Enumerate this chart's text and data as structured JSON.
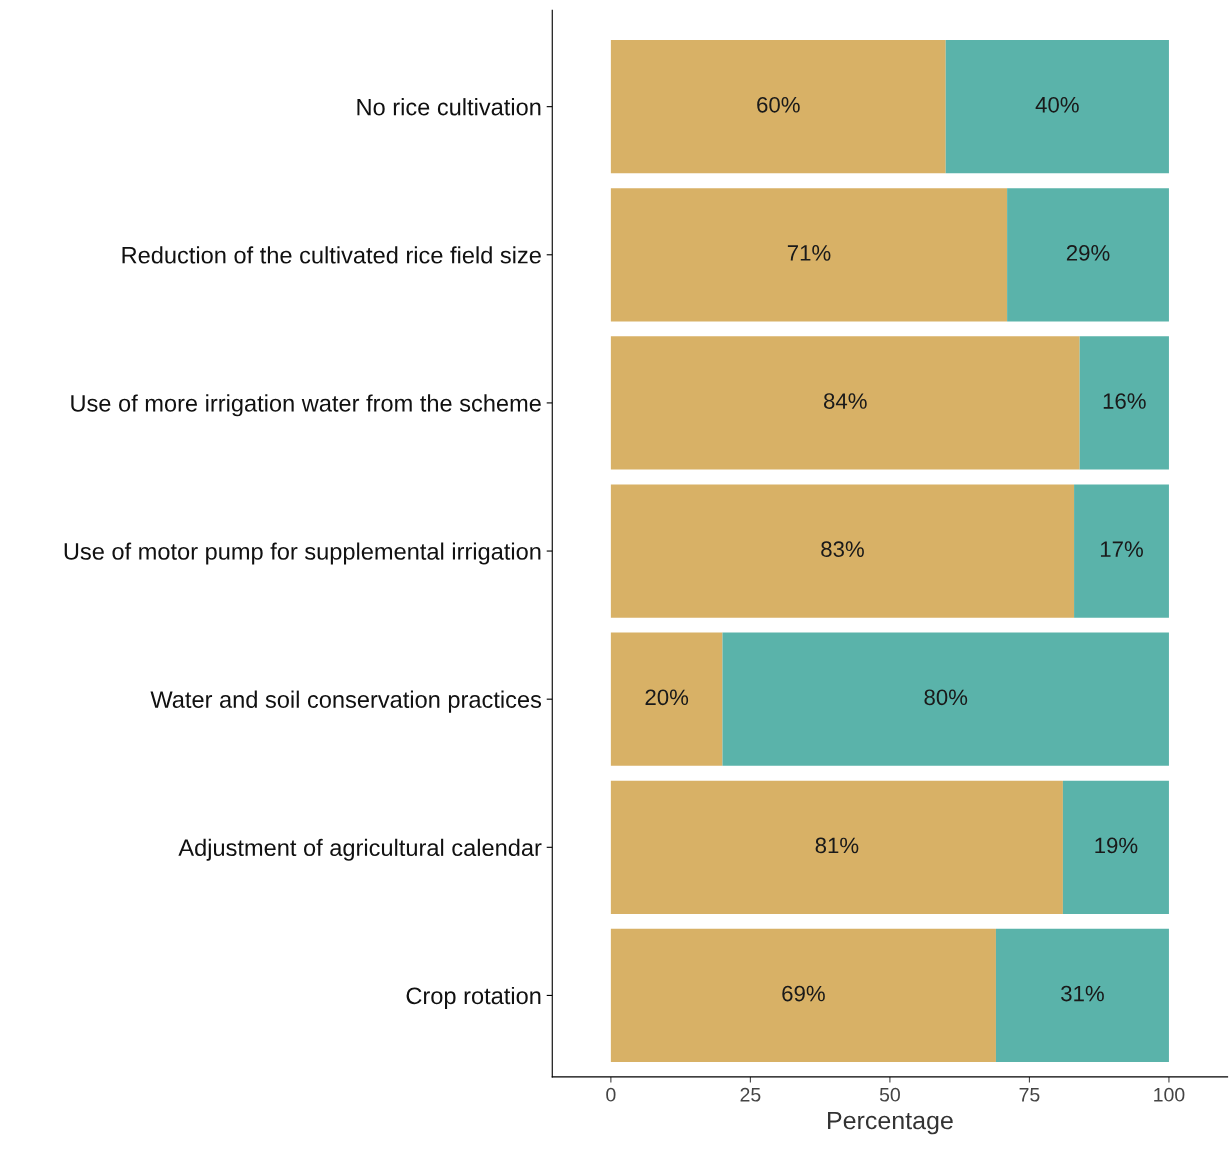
{
  "chart_data": {
    "type": "bar",
    "orientation": "horizontal",
    "stacked": true,
    "xlabel": "Percentage",
    "categories": [
      "No rice cultivation",
      "Reduction of the cultivated rice field size",
      "Use of more irrigation water from the scheme",
      "Use of motor pump for supplemental irrigation",
      "Water and soil conservation practices",
      "Adjustment of agricultural calendar",
      "Crop rotation"
    ],
    "series": [
      {
        "color": "#d8b166",
        "values": [
          60,
          71,
          84,
          83,
          20,
          81,
          69
        ],
        "value_labels": [
          "60%",
          "71%",
          "84%",
          "83%",
          "20%",
          "81%",
          "69%"
        ]
      },
      {
        "color": "#5ab3aa",
        "values": [
          40,
          29,
          16,
          17,
          80,
          19,
          31
        ],
        "value_labels": [
          "40%",
          "29%",
          "16%",
          "17%",
          "80%",
          "19%",
          "31%"
        ]
      }
    ],
    "xlim": [
      -10.5,
      110.5
    ],
    "xticks": [
      0,
      25,
      50,
      75,
      100
    ],
    "grid": false,
    "legend": false
  }
}
